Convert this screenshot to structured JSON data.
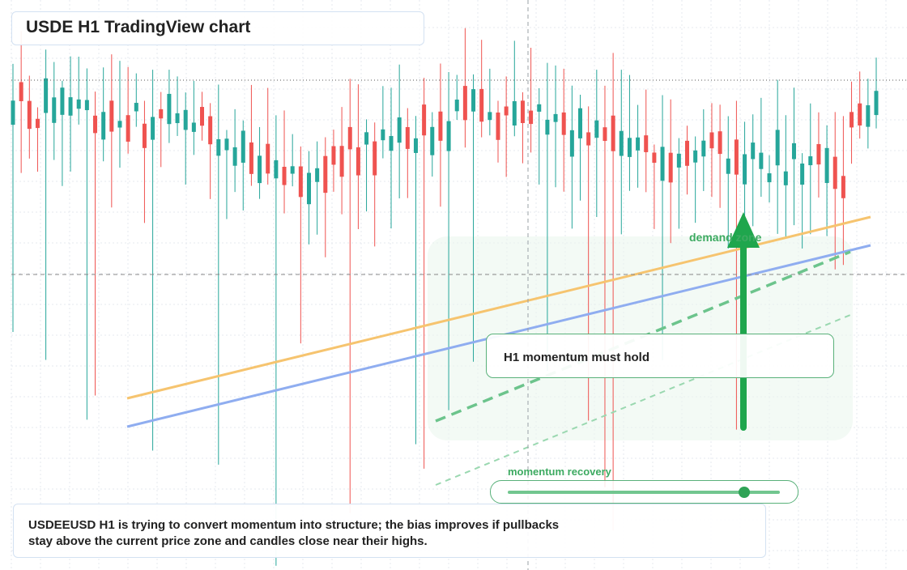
{
  "header": {
    "title": "USDE H1 TradingView chart"
  },
  "callout": {
    "text": "H1 momentum must hold"
  },
  "zone": {
    "label": "demand zone"
  },
  "momentum": {
    "label": "momentum recovery",
    "level_pct": 88
  },
  "note": {
    "line1": "USDEEUSD H1 is trying to convert momentum into structure; the bias improves if pullbacks",
    "line2": "stay above the current price zone and candles close near their highs."
  },
  "colors": {
    "up": "#26a69a",
    "down": "#ef5350",
    "ma_fast": "#f6c46f",
    "ma_slow": "#8fadf0",
    "accent_green": "#1fa64d",
    "zone_fill": "#e9f6ec",
    "grid": "#e6e9ef"
  },
  "chart_data": {
    "type": "candlestick",
    "timeframe": "H1",
    "symbol": "USDE",
    "candle_count": 106,
    "y_scale": "price (no tick labels shown)",
    "grid": true,
    "crosshair": true,
    "overlays": [
      {
        "kind": "moving_average",
        "color": "orange"
      },
      {
        "kind": "moving_average",
        "color": "blue"
      },
      {
        "kind": "trendline",
        "style": "dashed",
        "color": "green"
      },
      {
        "kind": "trendline",
        "style": "dashed-faint",
        "color": "green"
      },
      {
        "kind": "zone",
        "label": "demand zone"
      },
      {
        "kind": "arrow",
        "direction": "up",
        "color": "green"
      }
    ]
  }
}
